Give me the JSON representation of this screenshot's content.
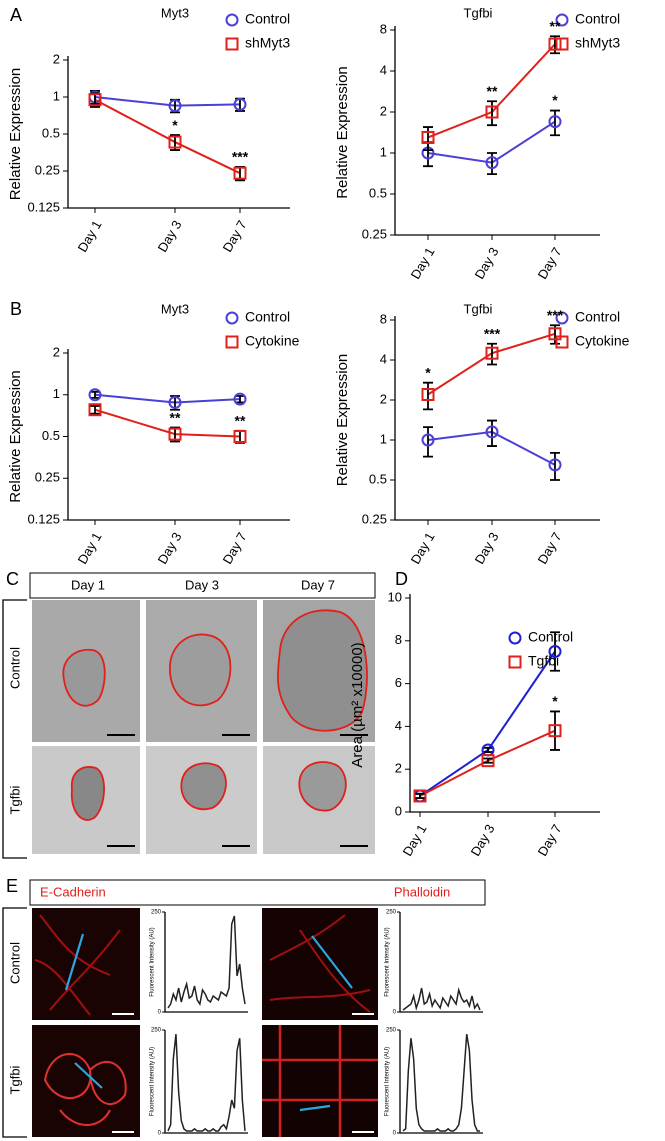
{
  "labels": {
    "panels": [
      "A",
      "B",
      "C",
      "D",
      "E"
    ],
    "c_columns": [
      "Day 1",
      "Day 3",
      "Day 7"
    ],
    "c_rows": [
      "Control",
      "Tgfbi"
    ],
    "e_columns": [
      "E-Cadherin",
      "Phalloidin"
    ],
    "e_rows": [
      "Control",
      "Tgfbi"
    ]
  },
  "chart_data": [
    {
      "type": "line",
      "title": "Myt3",
      "categories": [
        "Day 1",
        "Day 3",
        "Day 7"
      ],
      "ylabel": "Relative Expression",
      "log_scale": true,
      "ylim": [
        0.125,
        2
      ],
      "yticks": [
        0.125,
        0.25,
        0.5,
        1,
        2
      ],
      "legend": "upper right",
      "series": [
        {
          "name": "Control",
          "color": "#4a3fd6",
          "marker": "circle",
          "values": [
            1,
            0.85,
            0.87
          ],
          "errors": [
            0.12,
            0.1,
            0.1
          ],
          "significance": [
            null,
            null,
            null
          ]
        },
        {
          "name": "shMyt3",
          "color": "#e0201b",
          "marker": "square",
          "values": [
            0.95,
            0.43,
            0.24
          ],
          "errors": [
            0.12,
            0.06,
            0.03
          ],
          "significance": [
            null,
            "*",
            "***"
          ]
        }
      ]
    },
    {
      "type": "line",
      "title": "Tgfbi",
      "categories": [
        "Day 1",
        "Day 3",
        "Day 7"
      ],
      "ylabel": "Relative Expression",
      "log_scale": true,
      "ylim": [
        0.25,
        8
      ],
      "yticks": [
        0.25,
        0.5,
        1,
        2,
        4,
        8
      ],
      "legend": "upper right",
      "series": [
        {
          "name": "Control",
          "color": "#4a3fd6",
          "marker": "circle",
          "values": [
            1,
            0.85,
            1.7
          ],
          "errors": [
            0.2,
            0.15,
            0.35
          ],
          "significance": [
            null,
            null,
            "*"
          ]
        },
        {
          "name": "shMyt3",
          "color": "#e0201b",
          "marker": "square",
          "values": [
            1.3,
            2.0,
            6.3
          ],
          "errors": [
            0.25,
            0.4,
            0.9
          ],
          "significance": [
            null,
            "**",
            "**"
          ]
        }
      ]
    },
    {
      "type": "line",
      "title": "Myt3",
      "categories": [
        "Day 1",
        "Day 3",
        "Day 7"
      ],
      "ylabel": "Relative Expression",
      "log_scale": true,
      "ylim": [
        0.125,
        2
      ],
      "yticks": [
        0.125,
        0.25,
        0.5,
        1,
        2
      ],
      "legend": "upper right",
      "series": [
        {
          "name": "Control",
          "color": "#4a3fd6",
          "marker": "circle",
          "values": [
            1,
            0.88,
            0.93
          ],
          "errors": [
            0.05,
            0.1,
            0.05
          ],
          "significance": [
            null,
            null,
            null
          ]
        },
        {
          "name": "Cytokine",
          "color": "#e0201b",
          "marker": "square",
          "values": [
            0.78,
            0.52,
            0.5
          ],
          "errors": [
            0.05,
            0.06,
            0.05
          ],
          "significance": [
            null,
            "**",
            "**"
          ]
        }
      ]
    },
    {
      "type": "line",
      "title": "Tgfbi",
      "categories": [
        "Day 1",
        "Day 3",
        "Day 7"
      ],
      "ylabel": "Relative Expression",
      "log_scale": true,
      "ylim": [
        0.25,
        8
      ],
      "yticks": [
        0.25,
        0.5,
        1,
        2,
        4,
        8
      ],
      "legend": "upper right",
      "series": [
        {
          "name": "Control",
          "color": "#4a3fd6",
          "marker": "circle",
          "values": [
            1,
            1.15,
            0.65
          ],
          "errors": [
            0.25,
            0.25,
            0.15
          ],
          "significance": [
            null,
            null,
            null
          ]
        },
        {
          "name": "Cytokine",
          "color": "#e0201b",
          "marker": "square",
          "values": [
            2.2,
            4.5,
            6.3
          ],
          "errors": [
            0.5,
            0.8,
            1.0
          ],
          "significance": [
            "*",
            "***",
            "***"
          ]
        }
      ]
    },
    {
      "type": "line",
      "categories": [
        "Day 1",
        "Day 3",
        "Day 7"
      ],
      "ylabel": "Area (µm² x10000)",
      "log_scale": false,
      "ylim": [
        0,
        10
      ],
      "yticks": [
        0,
        2,
        4,
        6,
        8,
        10
      ],
      "legend": "upper left",
      "series": [
        {
          "name": "Control",
          "color": "#1f1fd6",
          "marker": "circle",
          "values": [
            0.75,
            2.9,
            7.5
          ],
          "errors": [
            0.1,
            0.1,
            0.9
          ],
          "significance": [
            null,
            null,
            null
          ]
        },
        {
          "name": "Tgfbi",
          "color": "#e0201b",
          "marker": "square",
          "values": [
            0.75,
            2.4,
            3.8
          ],
          "errors": [
            0.1,
            0.1,
            0.9
          ],
          "significance": [
            null,
            null,
            "*"
          ]
        }
      ]
    },
    {
      "type": "profile",
      "ylabel": "Fluorescent Intensity (AU)",
      "ylim": [
        0,
        250
      ],
      "yticks": [
        0,
        250
      ],
      "color": "#222222",
      "values": [
        10,
        20,
        45,
        30,
        60,
        25,
        50,
        70,
        35,
        40,
        65,
        30,
        20,
        55,
        45,
        30,
        25,
        40,
        35,
        30,
        50,
        45,
        40,
        60,
        220,
        240,
        90,
        120,
        60,
        20
      ]
    },
    {
      "type": "profile",
      "ylabel": "Fluorescent Intensity (AU)",
      "ylim": [
        0,
        250
      ],
      "yticks": [
        0,
        250
      ],
      "color": "#222222",
      "values": [
        5,
        10,
        15,
        20,
        40,
        10,
        30,
        60,
        20,
        25,
        45,
        15,
        30,
        20,
        10,
        35,
        25,
        15,
        40,
        30,
        20,
        55,
        35,
        25,
        30,
        15,
        40,
        10,
        20,
        5
      ]
    },
    {
      "type": "profile",
      "ylabel": "Fluorescent Intensity (AU)",
      "ylim": [
        0,
        250
      ],
      "yticks": [
        0,
        250
      ],
      "color": "#222222",
      "values": [
        5,
        20,
        180,
        240,
        100,
        30,
        10,
        5,
        5,
        5,
        10,
        5,
        5,
        5,
        10,
        5,
        5,
        10,
        5,
        5,
        15,
        20,
        10,
        40,
        80,
        60,
        200,
        230,
        80,
        5
      ]
    },
    {
      "type": "profile",
      "ylabel": "Fluorescent Intensity (AU)",
      "ylim": [
        0,
        250
      ],
      "yticks": [
        0,
        250
      ],
      "color": "#222222",
      "values": [
        5,
        10,
        150,
        230,
        180,
        60,
        20,
        10,
        5,
        5,
        5,
        5,
        5,
        10,
        5,
        5,
        5,
        10,
        5,
        5,
        10,
        20,
        60,
        150,
        240,
        200,
        80,
        20,
        5,
        5
      ]
    }
  ]
}
